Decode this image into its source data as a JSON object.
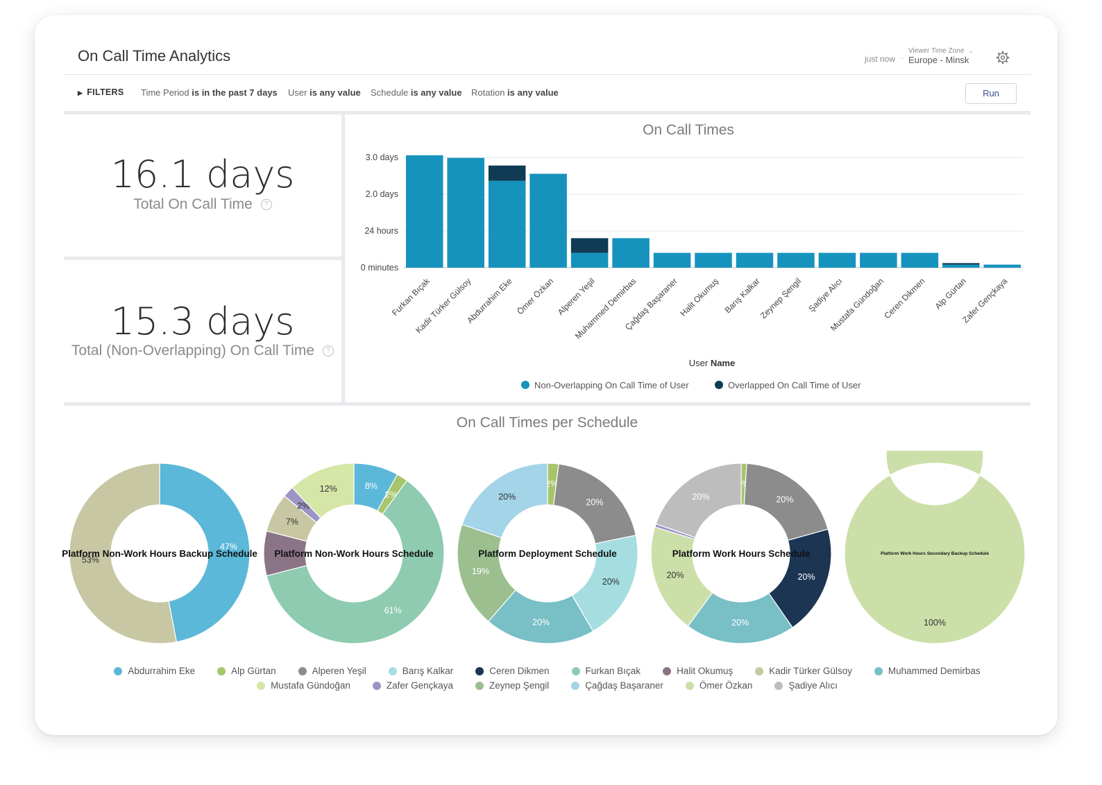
{
  "header": {
    "title": "On Call Time Analytics",
    "refresh_status": "just now",
    "separator": "·",
    "timezone_label": "Viewer Time Zone",
    "timezone_value": "Europe - Minsk",
    "settings_icon": "gear-icon"
  },
  "filters": {
    "toggle_label": "FILTERS",
    "items": [
      {
        "field": "Time Period",
        "condition": "is in the past 7 days"
      },
      {
        "field": "User",
        "condition": "is any value"
      },
      {
        "field": "Schedule",
        "condition": "is any value"
      },
      {
        "field": "Rotation",
        "condition": "is any value"
      }
    ],
    "run_label": "Run"
  },
  "kpis": [
    {
      "value": "16.1 days",
      "label": "Total On Call Time",
      "help": "?"
    },
    {
      "value": "15.3 days",
      "label": "Total (Non-Overlapping) On Call Time",
      "help": "?"
    }
  ],
  "colors": {
    "non_overlapping": "#1593bd",
    "overlapped": "#0f3b55"
  },
  "chart_data": [
    {
      "type": "bar",
      "title": "On Call Times",
      "xlabel_prefix": "User",
      "xlabel_bold": "Name",
      "ylabel": "",
      "y_unit": "hours",
      "ylim": [
        0,
        78
      ],
      "y_ticks": [
        {
          "value": 0,
          "label": "0 minutes"
        },
        {
          "value": 24,
          "label": "24 hours"
        },
        {
          "value": 48,
          "label": "2.0 days"
        },
        {
          "value": 72,
          "label": "3.0 days"
        }
      ],
      "grid": true,
      "stacked": true,
      "legend_position": "bottom",
      "categories": [
        "Furkan Bıçak",
        "Kadir Türker Gülsoy",
        "Abdurrahim Eke",
        "Ömer Özkan",
        "Alperen Yeşil",
        "Muhammed Demirbas",
        "Çağdaş Başaraner",
        "Halit Okumuş",
        "Barış Kalkar",
        "Zeynep Şengil",
        "Şadiye Alıcı",
        "Mustafa Gündoğan",
        "Ceren Dikmen",
        "Alp Gürtan",
        "Zafer Gençkaya"
      ],
      "series": [
        {
          "name": "Non-Overlapping On Call Time of User",
          "color": "#1593bd",
          "values": [
            73.5,
            71.8,
            56.8,
            61.4,
            9.7,
            19.3,
            9.7,
            9.7,
            9.7,
            9.7,
            9.7,
            9.7,
            9.7,
            2.0,
            2.0
          ]
        },
        {
          "name": "Overlapped On Call Time of User",
          "color": "#0f3b55",
          "values": [
            0,
            0,
            10.0,
            0,
            9.6,
            0,
            0,
            0,
            0,
            0,
            0,
            0,
            0,
            1.0,
            0
          ]
        }
      ]
    },
    {
      "type": "pie",
      "title": "On Call Times per Schedule",
      "legend_position": "bottom",
      "legend": [
        {
          "name": "Abdurrahim Eke",
          "color": "#5bb8d8"
        },
        {
          "name": "Alp Gürtan",
          "color": "#a6c56c"
        },
        {
          "name": "Alperen Yeşil",
          "color": "#8c8c8c"
        },
        {
          "name": "Barış Kalkar",
          "color": "#a6dde0"
        },
        {
          "name": "Ceren Dikmen",
          "color": "#1b3553"
        },
        {
          "name": "Furkan Bıçak",
          "color": "#8ecbb0"
        },
        {
          "name": "Halit Okumuş",
          "color": "#8a7486"
        },
        {
          "name": "Kadir Türker Gülsoy",
          "color": "#c8c7a4"
        },
        {
          "name": "Muhammed Demirbas",
          "color": "#78bfc6"
        },
        {
          "name": "Mustafa Gündoğan",
          "color": "#d5e6a7"
        },
        {
          "name": "Zafer Gençkaya",
          "color": "#9b94c4"
        },
        {
          "name": "Zeynep Şengil",
          "color": "#9bbf8f"
        },
        {
          "name": "Çağdaş Başaraner",
          "color": "#a4d4e7"
        },
        {
          "name": "Ömer Özkan",
          "color": "#cddfa9"
        },
        {
          "name": "Şadiye Alıcı",
          "color": "#bdbdbd"
        }
      ],
      "donuts": [
        {
          "name": "Platform Non-Work Hours Backup Schedule",
          "slices": [
            {
              "label": "Abdurrahim Eke",
              "value": 47,
              "pct": "47%",
              "color": "#5bb8d8"
            },
            {
              "label": "Kadir Türker Gülsoy",
              "value": 53,
              "pct": "53%",
              "color": "#c8c7a4"
            }
          ]
        },
        {
          "name": "Platform Non-Work Hours Schedule",
          "slices": [
            {
              "label": "Abdurrahim Eke",
              "value": 8,
              "pct": "8%",
              "color": "#5bb8d8"
            },
            {
              "label": "Alp Gürtan",
              "value": 2,
              "pct": "2%",
              "color": "#a6c56c"
            },
            {
              "label": "Furkan Bıçak",
              "value": 61,
              "pct": "61%",
              "color": "#8ecbb0"
            },
            {
              "label": "Halit Okumuş",
              "value": 8,
              "pct": "",
              "color": "#8a7486"
            },
            {
              "label": "Kadir Türker Gülsoy",
              "value": 7,
              "pct": "7%",
              "color": "#c8c7a4"
            },
            {
              "label": "Zafer Gençkaya",
              "value": 2,
              "pct": "2%",
              "color": "#9b94c4"
            },
            {
              "label": "Mustafa Gündoğan",
              "value": 12,
              "pct": "12%",
              "color": "#d5e6a7"
            }
          ]
        },
        {
          "name": "Platform Deployment Schedule",
          "slices": [
            {
              "label": "Alp Gürtan",
              "value": 2,
              "pct": "2%",
              "color": "#a6c56c"
            },
            {
              "label": "Alperen Yeşil",
              "value": 20,
              "pct": "20%",
              "color": "#8c8c8c"
            },
            {
              "label": "Barış Kalkar",
              "value": 20,
              "pct": "20%",
              "color": "#a6dde0"
            },
            {
              "label": "Muhammed Demirbas",
              "value": 20,
              "pct": "20%",
              "color": "#78bfc6"
            },
            {
              "label": "Zeynep Şengil",
              "value": 19,
              "pct": "19%",
              "color": "#9bbf8f"
            },
            {
              "label": "Çağdaş Başaraner",
              "value": 20,
              "pct": "20%",
              "color": "#a4d4e7"
            }
          ]
        },
        {
          "name": "Platform Work Hours Schedule",
          "slices": [
            {
              "label": "Alp Gürtan",
              "value": 1,
              "pct": "1%",
              "color": "#a6c56c"
            },
            {
              "label": "Alperen Yeşil",
              "value": 20,
              "pct": "20%",
              "color": "#8c8c8c"
            },
            {
              "label": "Ceren Dikmen",
              "value": 20,
              "pct": "20%",
              "color": "#1b3553"
            },
            {
              "label": "Muhammed Demirbas",
              "value": 20,
              "pct": "20%",
              "color": "#78bfc6"
            },
            {
              "label": "Ömer Özkan",
              "value": 20,
              "pct": "20%",
              "color": "#cddfa9"
            },
            {
              "label": "Zafer Gençkaya",
              "value": 0.6,
              "pct": "",
              "color": "#9b94c4"
            },
            {
              "label": "Şadiye Alıcı",
              "value": 20,
              "pct": "20%",
              "color": "#bdbdbd"
            }
          ]
        },
        {
          "name": "Platform Work Hours Secondary Backup Schedule",
          "slices": [
            {
              "label": "Ömer Özkan",
              "value": 100,
              "pct": "100%",
              "color": "#cddfa9"
            }
          ]
        }
      ]
    }
  ]
}
